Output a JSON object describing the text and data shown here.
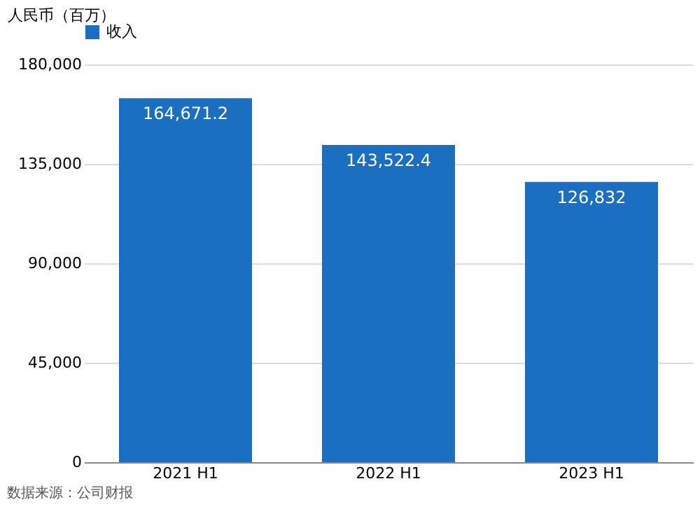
{
  "chart_data": {
    "type": "bar",
    "ylabel": "人民币（百万）",
    "categories": [
      "2021 H1",
      "2022 H1",
      "2023 H1"
    ],
    "series": [
      {
        "name": "收入",
        "color": "#1a6fc0",
        "values": [
          164671.2,
          143522.4,
          126832
        ]
      }
    ],
    "value_labels": [
      "164,671.2",
      "143,522.4",
      "126,832"
    ],
    "ylim": [
      0,
      180000
    ],
    "yticks": [
      {
        "value": 0,
        "label": "0"
      },
      {
        "value": 45000,
        "label": "45,000"
      },
      {
        "value": 90000,
        "label": "90,000"
      },
      {
        "value": 135000,
        "label": "135,000"
      },
      {
        "value": 180000,
        "label": "180,000"
      }
    ],
    "grid": "y",
    "legend": "top",
    "annotations": [
      "数据来源：公司财报"
    ]
  }
}
